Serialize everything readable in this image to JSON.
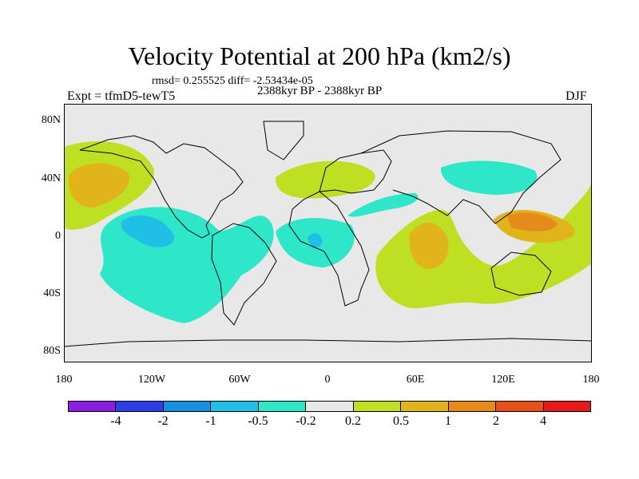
{
  "title": "Velocity Potential at 200 hPa (km2/s)",
  "stats_line": "rmsd= 0.255525 diff= -2.53434e-05",
  "period_line": "2388kyr BP - 2388kyr BP",
  "left_label": "Expt = tfmD5-tewT5",
  "right_label": "DJF",
  "lat_labels": [
    "80N",
    "40N",
    "0",
    "40S",
    "80S"
  ],
  "lon_labels": [
    "180",
    "120W",
    "60W",
    "0",
    "60E",
    "120E",
    "180"
  ],
  "colorbar": {
    "labels": [
      "-4",
      "-2",
      "-1",
      "-0.5",
      "-0.2",
      "0.2",
      "0.5",
      "1",
      "2",
      "4"
    ],
    "colors": [
      "#8a1fe0",
      "#2e3ee6",
      "#1a8fe0",
      "#1fbfe6",
      "#2ee6c8",
      "#e8e8e8",
      "#bfe022",
      "#e0b41a",
      "#e68a1a",
      "#e6501a",
      "#e61a1a"
    ]
  },
  "fills": {
    "positive_low": "#bfe022",
    "positive_mid": "#e0b41a",
    "positive_high": "#e68a1a",
    "negative_low": "#2ee6c8",
    "negative_mid": "#1fbfe6",
    "background": "#e8e8e8"
  }
}
